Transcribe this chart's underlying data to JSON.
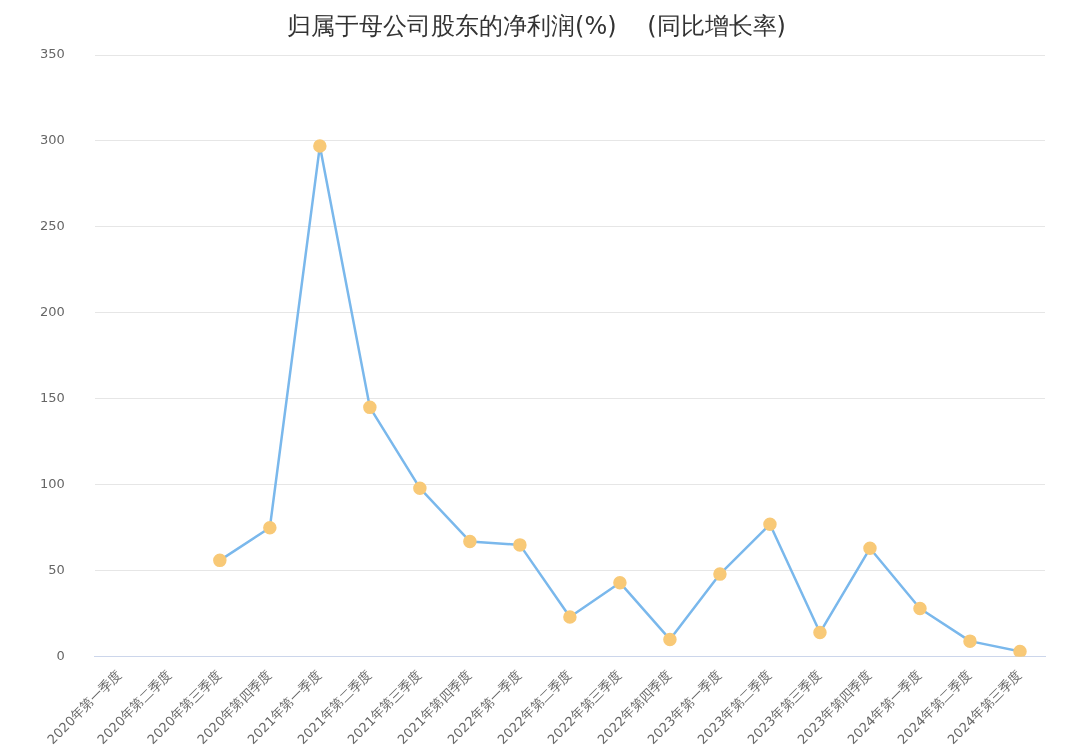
{
  "chart_data": {
    "type": "line",
    "title": "归属于母公司股东的净利润(%)    (同比增长率)",
    "categories": [
      "2020年第一季度",
      "2020年第二季度",
      "2020年第三季度",
      "2020年第四季度",
      "2021年第一季度",
      "2021年第二季度",
      "2021年第三季度",
      "2021年第四季度",
      "2022年第一季度",
      "2022年第二季度",
      "2022年第三季度",
      "2022年第四季度",
      "2023年第一季度",
      "2023年第二季度",
      "2023年第三季度",
      "2023年第四季度",
      "2024年第一季度",
      "2024年第二季度",
      "2024年第三季度"
    ],
    "series": [
      {
        "color": "#7ab8ec",
        "values": [
          null,
          null,
          56,
          75,
          297,
          145,
          98,
          67,
          65,
          23,
          43,
          10,
          48,
          77,
          14,
          63,
          28,
          9,
          3
        ]
      }
    ],
    "ylim": [
      0,
      350
    ],
    "yticks": [
      0,
      50,
      100,
      150,
      200,
      250,
      300,
      350
    ],
    "grid": "y",
    "legend": false,
    "marker": "circle",
    "line_style": "solid"
  }
}
